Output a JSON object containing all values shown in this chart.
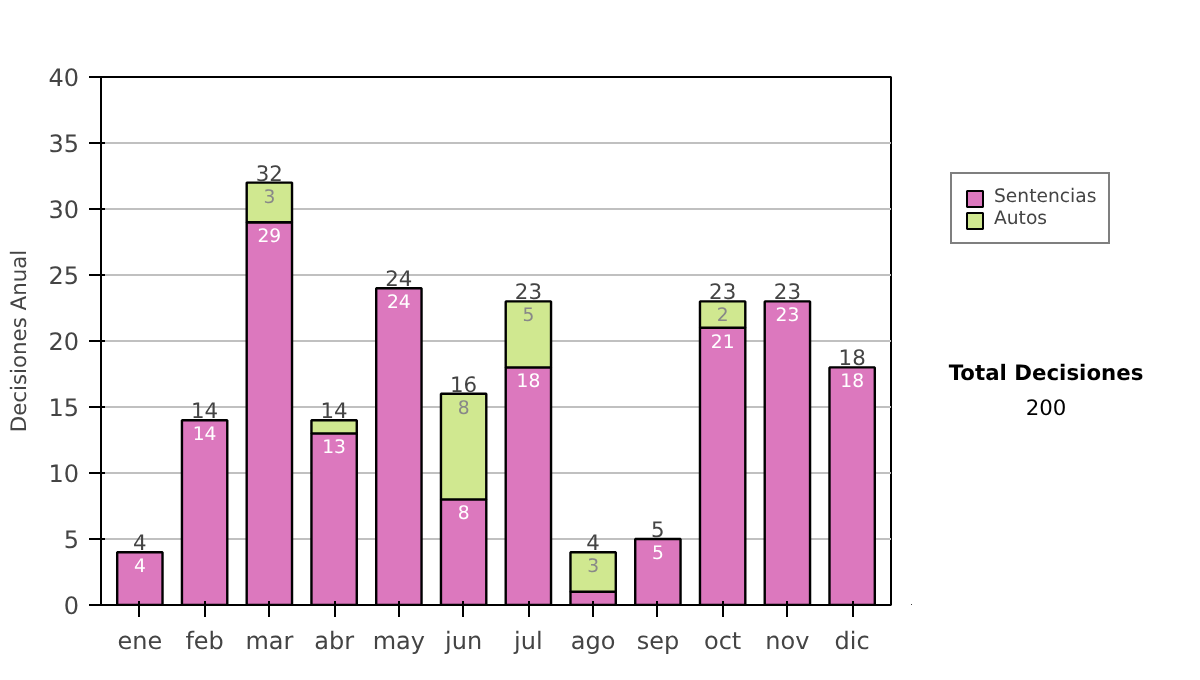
{
  "chart_data": {
    "type": "bar",
    "stacked": true,
    "ylabel": "Decisiones Anual",
    "categories": [
      "ene",
      "feb",
      "mar",
      "abr",
      "may",
      "jun",
      "jul",
      "ago",
      "sep",
      "oct",
      "nov",
      "dic"
    ],
    "series": [
      {
        "name": "Sentencias",
        "color": "#dc78be",
        "values": [
          4,
          14,
          29,
          13,
          24,
          8,
          18,
          1,
          5,
          21,
          23,
          18
        ],
        "value_labels": [
          "4",
          "14",
          "29",
          "13",
          "24",
          "8",
          "18",
          null,
          "5",
          "21",
          "23",
          "18"
        ]
      },
      {
        "name": "Autos",
        "color": "#d0e890",
        "values": [
          null,
          null,
          3,
          1,
          null,
          8,
          5,
          3,
          null,
          2,
          null,
          null
        ],
        "value_labels": [
          null,
          null,
          "3",
          null,
          null,
          "8",
          "5",
          "3",
          null,
          "2",
          null,
          null
        ]
      }
    ],
    "totals": [
      "4",
      "14",
      "32",
      "14",
      "24",
      "16",
      "23",
      "4",
      "5",
      "23",
      "23",
      "18"
    ],
    "ylim": [
      0,
      40
    ],
    "yticks": [
      0,
      5,
      10,
      15,
      20,
      25,
      30,
      35,
      40
    ],
    "grid": "y",
    "legend": "right",
    "annotations": [
      "Total Decisiones",
      "200"
    ]
  }
}
